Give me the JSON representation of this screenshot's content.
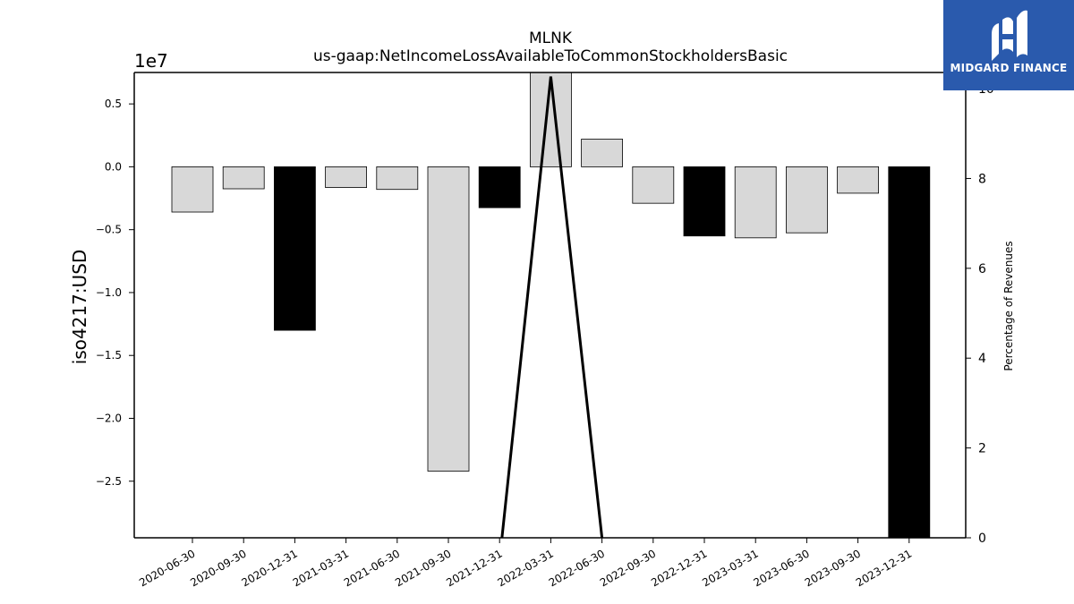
{
  "branding": {
    "logo_text": "MIDGARD FINANCE",
    "logo_bg": "#2a5aad"
  },
  "chart_data": {
    "type": "bar",
    "title": "MLNK",
    "subtitle": "us-gaap:NetIncomeLossAvailableToCommonStockholdersBasic",
    "ylabel": "iso4217:USD",
    "ylabel_right": "Percentage of Revenues",
    "offset_text": "1e7",
    "ylim": [
      -29500000,
      7500000
    ],
    "ylim_right": [
      0,
      10.36
    ],
    "yticks": [
      0.5,
      0.0,
      -0.5,
      -1.0,
      -1.5,
      -2.0,
      -2.5
    ],
    "ytick_labels": [
      "0.5",
      "0.0",
      "−0.5",
      "−1.0",
      "−1.5",
      "−2.0",
      "−2.5"
    ],
    "yticks_right": [
      0,
      2,
      4,
      6,
      8,
      10
    ],
    "ytick_right_labels": [
      "0",
      "2",
      "4",
      "6",
      "8",
      "10"
    ],
    "grid": false,
    "categories": [
      "2020-06-30",
      "2020-09-30",
      "2020-12-31",
      "2021-03-31",
      "2021-06-30",
      "2021-09-30",
      "2021-12-31",
      "2022-03-31",
      "2022-06-30",
      "2022-09-30",
      "2022-12-31",
      "2023-03-31",
      "2023-06-30",
      "2023-09-30",
      "2023-12-31"
    ],
    "values": [
      -3600000,
      -1750000,
      -13000000,
      -1650000,
      -1800000,
      -24200000,
      -3250000,
      10500000,
      2200000,
      -2900000,
      -5500000,
      -5650000,
      -5250000,
      -2100000,
      -29500000
    ],
    "highlighted": [
      false,
      false,
      true,
      false,
      false,
      false,
      true,
      false,
      false,
      false,
      true,
      false,
      false,
      false,
      true
    ],
    "colors": {
      "bar": "#d8d8d8",
      "bar_highlight": "#000000",
      "edge": "#000000",
      "line": "#000000"
    },
    "line_series": {
      "axis": "right",
      "points": [
        {
          "category": "2021-12-31",
          "value": -0.5
        },
        {
          "category": "2022-03-31",
          "value": 10.27
        },
        {
          "category": "2022-06-30",
          "value": 0
        }
      ]
    }
  }
}
